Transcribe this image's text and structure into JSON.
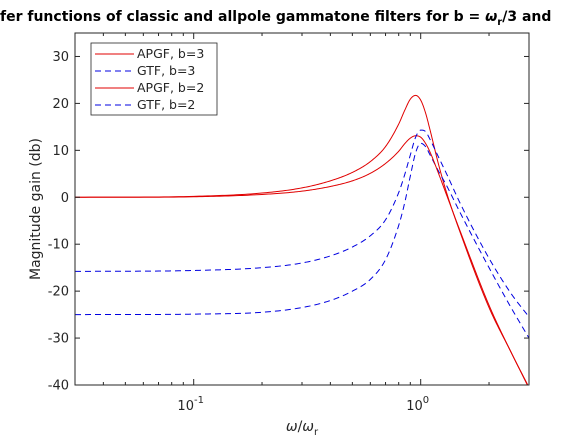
{
  "chart_data": {
    "type": "line",
    "title": {
      "prefix": "fer functions of classic and allpole gammatone filters for b = ",
      "omega": "ω",
      "omega_sub": "r",
      "suffix": "/3 and"
    },
    "xlabel": {
      "num": "ω",
      "sep": "/",
      "den": "ω",
      "den_sub": "r"
    },
    "ylabel": "Magnitude gain (db)",
    "xscale": "log",
    "xlim": [
      0.03,
      3.0
    ],
    "ylim": [
      -40,
      35
    ],
    "yticks": [
      "30",
      "20",
      "10",
      "0",
      "-10",
      "-20",
      "-30",
      "-40"
    ],
    "xticks": [
      {
        "base": "10",
        "exp": "-1"
      },
      {
        "base": "10",
        "exp": "0"
      }
    ],
    "grid": false,
    "legend_location": "top-left",
    "colors": {
      "apgf": "#e00000",
      "gtf": "#0000e0",
      "axes": "#262626"
    },
    "series": [
      {
        "name": "APGF, b=3",
        "style": "solid",
        "x": [
          0.03,
          0.1,
          0.2,
          0.3,
          0.4,
          0.5,
          0.6,
          0.7,
          0.8,
          0.85,
          0.9,
          0.95,
          1.0,
          1.05,
          1.1,
          1.2,
          1.3,
          1.5,
          2.0,
          2.5,
          2.95
        ],
        "y": [
          0.0,
          0.2,
          0.9,
          2.0,
          3.5,
          5.3,
          7.6,
          10.8,
          15.6,
          18.5,
          20.9,
          21.7,
          20.7,
          18.0,
          14.3,
          6.9,
          1.0,
          -7.8,
          -23.5,
          -33.0,
          -40.0
        ]
      },
      {
        "name": "GTF, b=3",
        "style": "dashed",
        "x": [
          0.03,
          0.1,
          0.2,
          0.3,
          0.4,
          0.5,
          0.6,
          0.7,
          0.8,
          0.85,
          0.9,
          0.95,
          1.0,
          1.05,
          1.1,
          1.2,
          1.3,
          1.5,
          2.0,
          2.5,
          3.0
        ],
        "y": [
          -25.0,
          -24.9,
          -24.5,
          -23.5,
          -22.0,
          -20.0,
          -17.5,
          -13.3,
          -6.0,
          -1.2,
          4.5,
          9.5,
          11.5,
          10.8,
          9.0,
          5.5,
          2.5,
          -3.5,
          -15.0,
          -23.5,
          -30.0
        ]
      },
      {
        "name": "APGF, b=2",
        "style": "solid",
        "x": [
          0.03,
          0.1,
          0.2,
          0.3,
          0.4,
          0.5,
          0.6,
          0.7,
          0.8,
          0.85,
          0.9,
          0.95,
          1.0,
          1.05,
          1.1,
          1.2,
          1.3,
          1.5,
          2.0,
          2.5,
          3.0
        ],
        "y": [
          0.0,
          0.1,
          0.6,
          1.3,
          2.3,
          3.5,
          5.1,
          7.2,
          9.8,
          11.4,
          12.6,
          13.1,
          12.8,
          11.5,
          9.6,
          5.0,
          0.5,
          -7.5,
          -23.0,
          -33.0,
          -40.5
        ]
      },
      {
        "name": "GTF, b=2",
        "style": "dashed",
        "x": [
          0.03,
          0.1,
          0.2,
          0.3,
          0.4,
          0.5,
          0.6,
          0.7,
          0.8,
          0.85,
          0.9,
          0.95,
          1.0,
          1.05,
          1.1,
          1.2,
          1.3,
          1.5,
          2.0,
          2.5,
          3.0
        ],
        "y": [
          -15.8,
          -15.6,
          -15.0,
          -14.0,
          -12.5,
          -10.6,
          -8.2,
          -4.8,
          1.0,
          4.8,
          9.0,
          12.8,
          14.3,
          14.0,
          12.3,
          8.5,
          5.0,
          -1.5,
          -13.0,
          -20.5,
          -25.5
        ]
      }
    ]
  }
}
